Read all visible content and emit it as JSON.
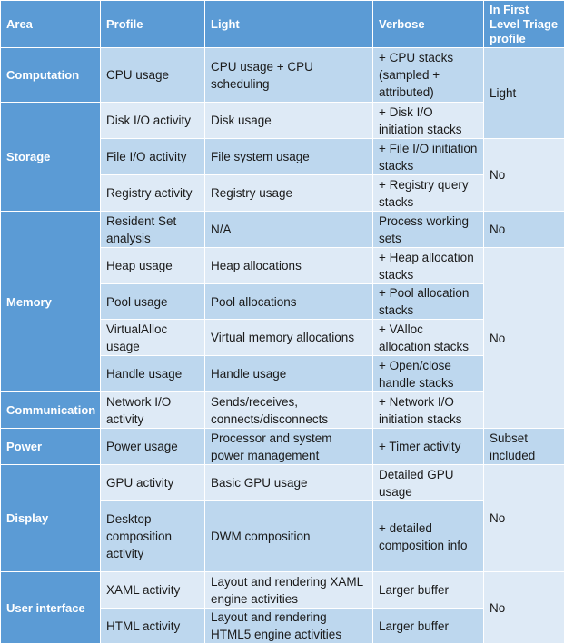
{
  "table": {
    "header": [
      "Area",
      "Profile",
      "Light",
      "Verbose",
      "In First Level Triage profile"
    ],
    "areas": [
      "Computation",
      "Storage",
      "Memory",
      "Communication",
      "Power",
      "Display",
      "User interface"
    ],
    "rows": [
      [
        "CPU usage",
        "CPU usage + CPU scheduling",
        "+ CPU stacks (sampled + attributed)"
      ],
      [
        "Disk I/O activity",
        "Disk usage",
        "+ Disk I/O initiation stacks"
      ],
      [
        "File I/O activity",
        "File system usage",
        "+ File I/O initiation stacks"
      ],
      [
        "Registry activity",
        "Registry usage",
        "+ Registry query stacks"
      ],
      [
        "Resident Set analysis",
        "N/A",
        "Process working sets"
      ],
      [
        "Heap usage",
        "Heap allocations",
        "+ Heap allocation stacks"
      ],
      [
        "Pool usage",
        "Pool allocations",
        "+ Pool allocation stacks"
      ],
      [
        "VirtualAlloc usage",
        "Virtual memory allocations",
        "+ VAlloc allocation stacks"
      ],
      [
        "Handle usage",
        "Handle usage",
        "+ Open/close handle  stacks"
      ],
      [
        "Network I/O activity",
        "Sends/receives, connects/disconnects",
        "+ Network I/O initiation stacks"
      ],
      [
        "Power usage",
        "Processor and system power management",
        "+ Timer activity"
      ],
      [
        "GPU activity",
        "Basic GPU usage",
        "Detailed GPU usage"
      ],
      [
        "Desktop composition activity",
        "DWM composition",
        "+ detailed composition info"
      ],
      [
        "XAML activity",
        "Layout and rendering XAML engine activities",
        "Larger buffer"
      ],
      [
        "HTML activity",
        "Layout and rendering HTML5 engine activities",
        "Larger buffer"
      ]
    ],
    "triage": [
      "Light",
      "No",
      "No",
      "No",
      "Subset included",
      "No",
      "No"
    ]
  }
}
